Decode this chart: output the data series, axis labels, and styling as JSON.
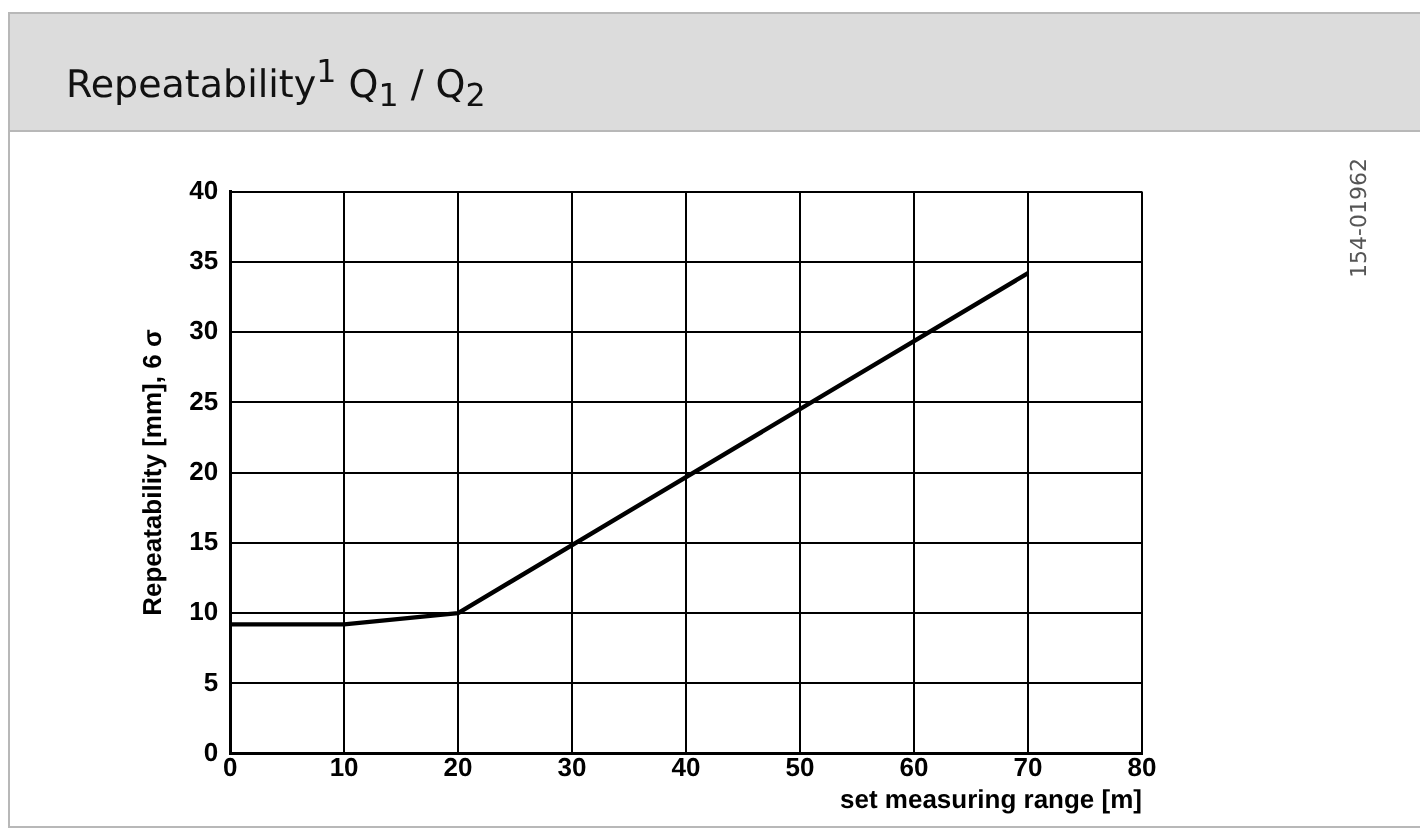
{
  "chart_data": {
    "type": "line",
    "title": "Repeatability$^{1}$ Q$_{1}$ / Q$_{2}$",
    "xlabel": "set measuring range [m]",
    "ylabel": "Repeatability [mm], 6 σ",
    "x": [
      0,
      10,
      20,
      70
    ],
    "series": [
      {
        "color": "#000000",
        "values": [
          9.2,
          9.2,
          10,
          34.2
        ]
      }
    ],
    "xlim": [
      0,
      80
    ],
    "xticks": [
      0,
      10,
      20,
      30,
      40,
      50,
      60,
      70,
      80
    ],
    "ylim": [
      0,
      40
    ],
    "yticks": [
      0,
      5,
      10,
      15,
      20,
      25,
      30,
      35,
      40
    ],
    "grid": true,
    "legend": false,
    "marker": "none",
    "line_style": "solid",
    "annotations": [
      "154-01962"
    ]
  }
}
